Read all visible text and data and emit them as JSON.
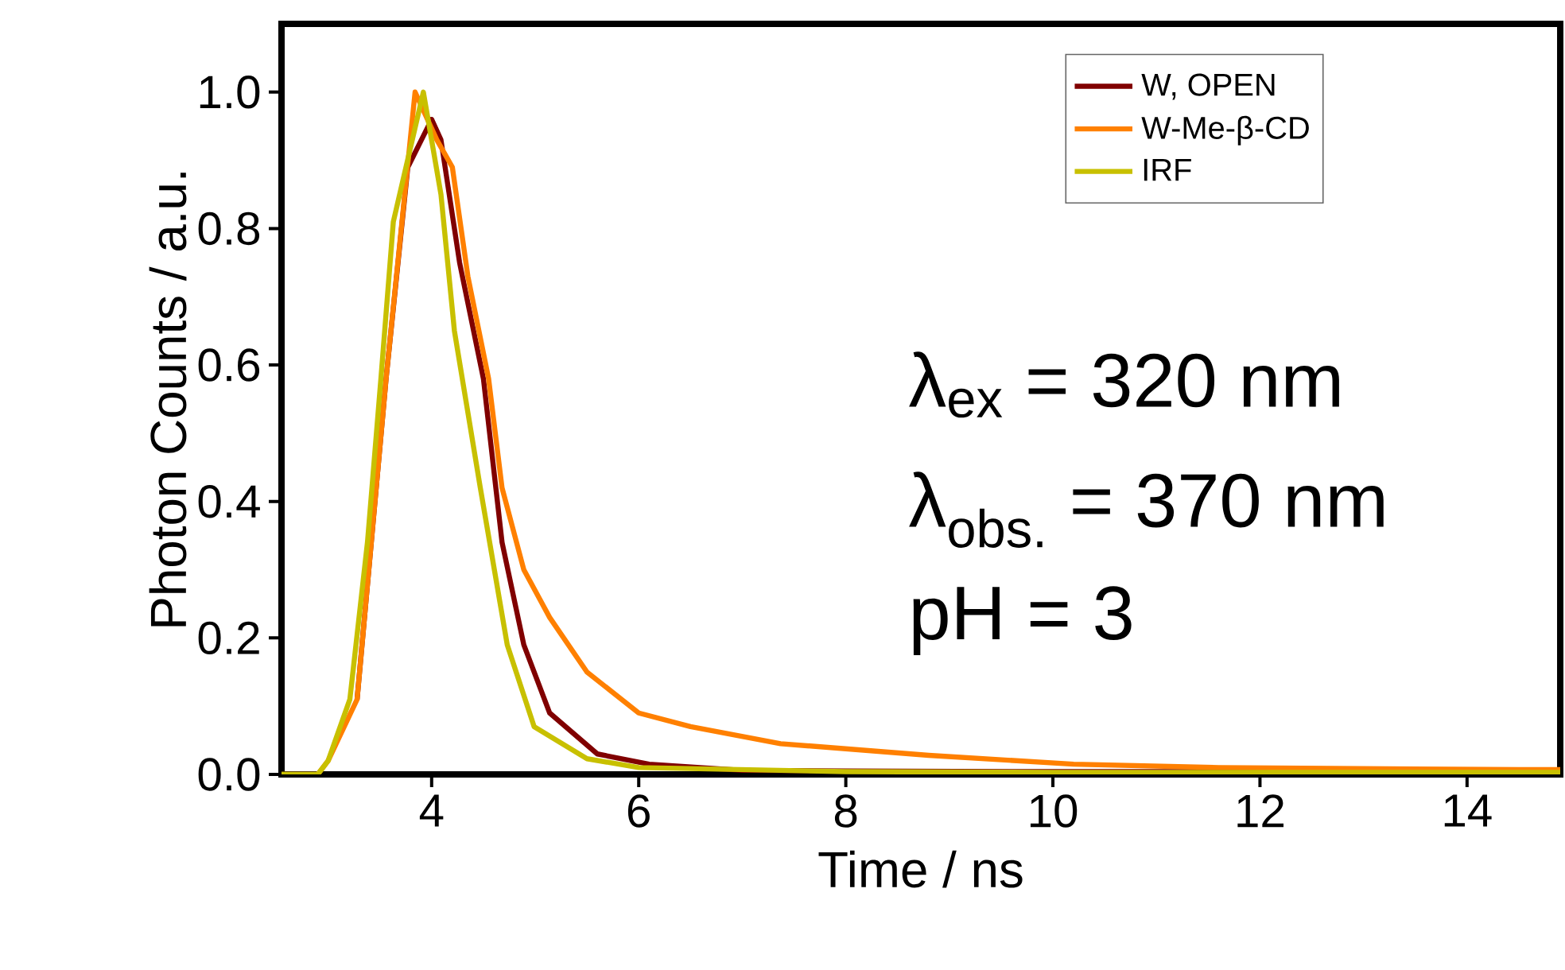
{
  "chart_data": {
    "type": "line",
    "xlabel": "Time / ns",
    "ylabel": "Photon Counts / a.u.",
    "xlim": [
      2.55,
      14.9
    ],
    "ylim": [
      0,
      1.1
    ],
    "xticks": [
      4,
      6,
      8,
      10,
      12,
      14
    ],
    "yticks": [
      {
        "value": 0,
        "label": "0.0"
      },
      0.2,
      0.4,
      0.6,
      0.8,
      {
        "value": 1,
        "label": "1.0"
      }
    ],
    "legend": "top right",
    "marker": "none",
    "line_style": "solid",
    "annotations": [
      "λ$_{ex}$ = 320 nm",
      "λ$_{obs.}$ = 370 nm",
      "pH = 3"
    ],
    "series": [
      {
        "name": "W, OPEN",
        "color": "#800000",
        "x": [
          3.28,
          3.56,
          3.77,
          4.0,
          4.09,
          4.27,
          4.5,
          4.68,
          4.89,
          5.14,
          5.6,
          6.1,
          7.0,
          8.0,
          10.0,
          12.0,
          14.9
        ],
        "values": [
          0.11,
          0.58,
          0.89,
          0.96,
          0.93,
          0.75,
          0.58,
          0.34,
          0.19,
          0.09,
          0.03,
          0.015,
          0.006,
          0.005,
          0.004,
          0.004,
          0.004
        ]
      },
      {
        "name": "W-Me-β-CD",
        "color": "#ff8000",
        "x": [
          2.55,
          2.9,
          3.0,
          3.28,
          3.56,
          3.84,
          4.05,
          4.2,
          4.35,
          4.55,
          4.68,
          4.89,
          5.14,
          5.5,
          6.0,
          6.5,
          7.37,
          8.8,
          10.2,
          11.6,
          14.5,
          14.9
        ],
        "values": [
          0,
          0,
          0.02,
          0.11,
          0.58,
          1.0,
          0.93,
          0.89,
          0.73,
          0.58,
          0.42,
          0.3,
          0.23,
          0.15,
          0.09,
          0.07,
          0.045,
          0.028,
          0.015,
          0.01,
          0.007,
          0.007
        ]
      },
      {
        "name": "IRF",
        "color": "#c8c000",
        "x": [
          2.55,
          2.9,
          3.0,
          3.21,
          3.38,
          3.51,
          3.63,
          3.92,
          4.09,
          4.22,
          4.47,
          4.73,
          4.99,
          5.5,
          6.0,
          8.0,
          10.0,
          14.9
        ],
        "values": [
          0,
          0,
          0.02,
          0.11,
          0.34,
          0.58,
          0.81,
          1.0,
          0.85,
          0.65,
          0.42,
          0.19,
          0.07,
          0.023,
          0.01,
          0.004,
          0.003,
          0.003
        ]
      }
    ]
  }
}
